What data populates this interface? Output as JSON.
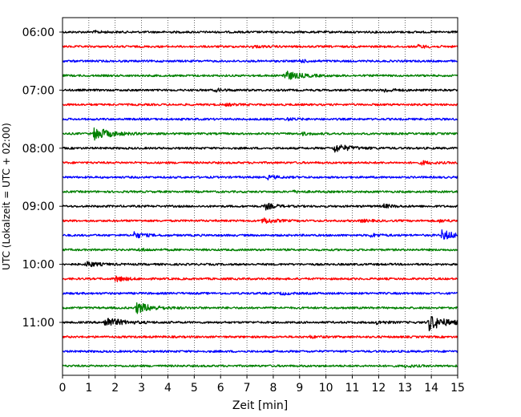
{
  "chart_data": {
    "type": "line",
    "title": "",
    "xlabel": "Zeit  [min]",
    "ylabel": "UTC (Lokalzeit = UTC + 02:00)",
    "xlim": [
      0,
      15
    ],
    "x_ticks": [
      "0",
      "1",
      "2",
      "3",
      "4",
      "5",
      "6",
      "7",
      "8",
      "9",
      "10",
      "11",
      "12",
      "13",
      "14",
      "15"
    ],
    "y_ticks": [
      {
        "label": "06:00",
        "row": 0
      },
      {
        "label": "07:00",
        "row": 4
      },
      {
        "label": "08:00",
        "row": 8
      },
      {
        "label": "09:00",
        "row": 12
      },
      {
        "label": "10:00",
        "row": 16
      },
      {
        "label": "11:00",
        "row": 20
      }
    ],
    "grid": "vertical dotted lines at each minute",
    "row_minutes": 15,
    "start_time": "06:00",
    "row_colors": [
      "#000000",
      "#ff0000",
      "#0000ff",
      "#008000"
    ],
    "traces": [
      {
        "start": "06:00",
        "color": "#000000",
        "events": [
          {
            "t": 1.2,
            "amp": 0.25
          }
        ]
      },
      {
        "start": "06:15",
        "color": "#ff0000",
        "events": [
          {
            "t": 7.2,
            "amp": 0.25
          },
          {
            "t": 13.5,
            "amp": 0.35
          }
        ]
      },
      {
        "start": "06:30",
        "color": "#0000ff",
        "events": [
          {
            "t": 9.0,
            "amp": 0.35
          }
        ]
      },
      {
        "start": "06:45",
        "color": "#008000",
        "events": [
          {
            "t": 8.4,
            "amp": 1.3
          }
        ]
      },
      {
        "start": "07:00",
        "color": "#000000",
        "events": [
          {
            "t": 5.8,
            "amp": 0.35
          },
          {
            "t": 12.2,
            "amp": 0.5
          }
        ]
      },
      {
        "start": "07:15",
        "color": "#ff0000",
        "events": [
          {
            "t": 6.2,
            "amp": 0.25
          }
        ]
      },
      {
        "start": "07:30",
        "color": "#0000ff",
        "events": [
          {
            "t": 8.5,
            "amp": 0.3
          }
        ]
      },
      {
        "start": "07:45",
        "color": "#008000",
        "events": [
          {
            "t": 1.2,
            "amp": 1.8
          },
          {
            "t": 9.1,
            "amp": 0.3
          }
        ]
      },
      {
        "start": "08:00",
        "color": "#000000",
        "events": [
          {
            "t": 10.3,
            "amp": 1.1
          }
        ]
      },
      {
        "start": "08:15",
        "color": "#ff0000",
        "events": [
          {
            "t": 13.6,
            "amp": 0.5
          }
        ]
      },
      {
        "start": "08:30",
        "color": "#0000ff",
        "events": [
          {
            "t": 7.8,
            "amp": 0.45
          }
        ]
      },
      {
        "start": "08:45",
        "color": "#008000",
        "events": [
          {
            "t": 8.7,
            "amp": 0.25
          }
        ]
      },
      {
        "start": "09:00",
        "color": "#000000",
        "events": [
          {
            "t": 7.7,
            "amp": 0.85
          },
          {
            "t": 12.2,
            "amp": 0.45
          }
        ]
      },
      {
        "start": "09:15",
        "color": "#ff0000",
        "events": [
          {
            "t": 7.6,
            "amp": 0.9
          },
          {
            "t": 11.3,
            "amp": 0.3
          },
          {
            "t": 14.3,
            "amp": 0.3
          }
        ]
      },
      {
        "start": "09:30",
        "color": "#0000ff",
        "events": [
          {
            "t": 2.7,
            "amp": 0.85
          },
          {
            "t": 11.7,
            "amp": 0.45
          },
          {
            "t": 14.4,
            "amp": 1.3
          }
        ]
      },
      {
        "start": "09:45",
        "color": "#008000",
        "events": [
          {
            "t": 2.9,
            "amp": 0.3
          }
        ]
      },
      {
        "start": "10:00",
        "color": "#000000",
        "events": [
          {
            "t": 0.9,
            "amp": 0.85
          }
        ]
      },
      {
        "start": "10:15",
        "color": "#ff0000",
        "events": [
          {
            "t": 2.0,
            "amp": 0.8
          }
        ]
      },
      {
        "start": "10:30",
        "color": "#0000ff",
        "events": [
          {
            "t": 8.3,
            "amp": 0.3
          }
        ]
      },
      {
        "start": "10:45",
        "color": "#008000",
        "events": [
          {
            "t": 2.8,
            "amp": 1.5
          }
        ]
      },
      {
        "start": "11:00",
        "color": "#000000",
        "events": [
          {
            "t": 1.6,
            "amp": 1.5
          },
          {
            "t": 11.9,
            "amp": 0.45
          },
          {
            "t": 13.9,
            "amp": 2.2
          }
        ]
      },
      {
        "start": "11:15",
        "color": "#ff0000",
        "events": [
          {
            "t": 9.4,
            "amp": 0.25
          }
        ]
      },
      {
        "start": "11:30",
        "color": "#0000ff",
        "events": []
      },
      {
        "start": "11:45",
        "color": "#008000",
        "events": [
          {
            "t": 13.0,
            "amp": 0.3
          }
        ]
      }
    ]
  }
}
